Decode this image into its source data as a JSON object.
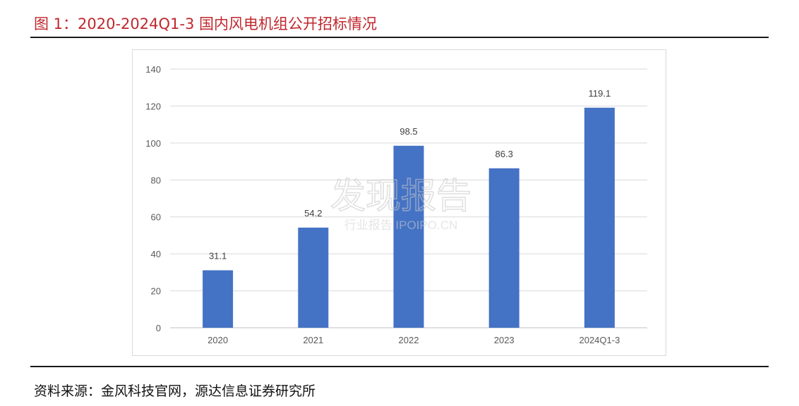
{
  "figure": {
    "title": "图 1：2020-2024Q1-3 国内风电机组公开招标情况",
    "source": "资料来源：金风科技官网，源达信息证券研究所",
    "watermark_main": "发现报告",
    "watermark_sub": "行业报告 IPOIPO.CN"
  },
  "chart_data": {
    "type": "bar",
    "categories": [
      "2020",
      "2021",
      "2022",
      "2023",
      "2024Q1-3"
    ],
    "values": [
      31.1,
      54.2,
      98.5,
      86.3,
      119.1
    ],
    "data_labels": [
      "31.1",
      "54.2",
      "98.5",
      "86.3",
      "119.1"
    ],
    "yticks": [
      0,
      20,
      40,
      60,
      80,
      100,
      120,
      140
    ],
    "ylim": [
      0,
      140
    ],
    "title": "",
    "xlabel": "",
    "ylabel": "",
    "grid": true,
    "legend": "none",
    "colors": {
      "bar": "#4472c4",
      "grid": "#d9d9d9",
      "axis": "#bfbfbf",
      "text": "#595959"
    }
  }
}
